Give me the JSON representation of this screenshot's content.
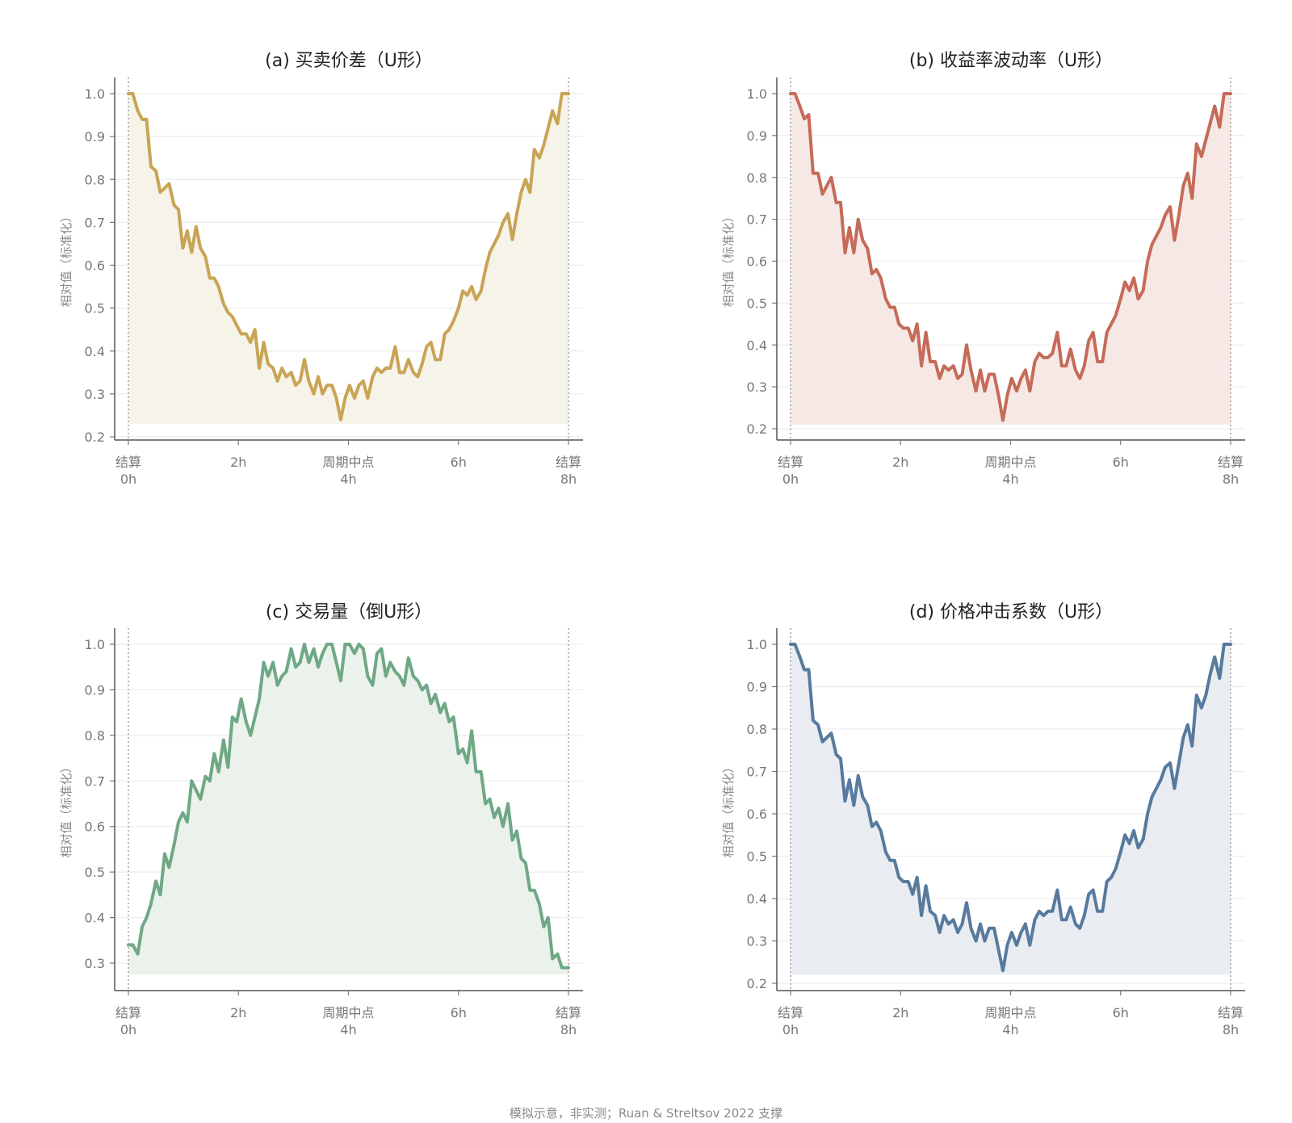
{
  "footer": "模拟示意，非实测；Ruan & Streltsov 2022 支撑",
  "chart_data": [
    {
      "type": "area",
      "title": "(a) 买卖价差（U形）",
      "ylabel": "相对值（标准化）",
      "xlabel": "",
      "color": "#c9a455",
      "fill": "#f6f3e9",
      "ylim": [
        0.2,
        1.0
      ],
      "yticks": [
        0.2,
        0.3,
        0.4,
        0.5,
        0.6,
        0.7,
        0.8,
        0.9,
        1.0
      ],
      "xlim": [
        0,
        8
      ],
      "xticks": [
        {
          "x": 0,
          "label": [
            "结算",
            "0h"
          ]
        },
        {
          "x": 2,
          "label": [
            "2h"
          ]
        },
        {
          "x": 4,
          "label": [
            "周期中点",
            "4h"
          ]
        },
        {
          "x": 6,
          "label": [
            "6h"
          ]
        },
        {
          "x": 8,
          "label": [
            "结算",
            "8h"
          ]
        }
      ],
      "vlines": [
        0,
        8
      ],
      "baseline": 0.23,
      "x": [
        0.0,
        0.08,
        0.17,
        0.25,
        0.33,
        0.41,
        0.5,
        0.58,
        0.66,
        0.74,
        0.83,
        0.91,
        0.99,
        1.07,
        1.15,
        1.23,
        1.31,
        1.4,
        1.48,
        1.56,
        1.64,
        1.73,
        1.81,
        1.89,
        1.97,
        2.05,
        2.14,
        2.22,
        2.3,
        2.38,
        2.46,
        2.54,
        2.63,
        2.71,
        2.79,
        2.87,
        2.96,
        3.04,
        3.12,
        3.2,
        3.28,
        3.37,
        3.45,
        3.53,
        3.61,
        3.7,
        3.78,
        3.86,
        3.94,
        4.02,
        4.11,
        4.19,
        4.27,
        4.35,
        4.44,
        4.52,
        4.6,
        4.68,
        4.76,
        4.85,
        4.93,
        5.01,
        5.09,
        5.18,
        5.26,
        5.34,
        5.42,
        5.5,
        5.58,
        5.67,
        5.75,
        5.83,
        5.91,
        6.0,
        6.08,
        6.16,
        6.24,
        6.32,
        6.41,
        6.49,
        6.57,
        6.65,
        6.73,
        6.81,
        6.9,
        6.98,
        7.06,
        7.14,
        7.22,
        7.3,
        7.38,
        7.47,
        7.55,
        7.63,
        7.71,
        7.8,
        7.88,
        7.96,
        8.0
      ],
      "y": [
        1.0,
        1.0,
        0.96,
        0.94,
        0.94,
        0.83,
        0.82,
        0.77,
        0.78,
        0.79,
        0.74,
        0.73,
        0.64,
        0.68,
        0.63,
        0.69,
        0.64,
        0.62,
        0.57,
        0.57,
        0.55,
        0.51,
        0.49,
        0.48,
        0.46,
        0.44,
        0.44,
        0.42,
        0.45,
        0.36,
        0.42,
        0.37,
        0.36,
        0.33,
        0.36,
        0.34,
        0.35,
        0.32,
        0.33,
        0.38,
        0.33,
        0.3,
        0.34,
        0.3,
        0.32,
        0.32,
        0.29,
        0.24,
        0.29,
        0.32,
        0.29,
        0.32,
        0.33,
        0.29,
        0.34,
        0.36,
        0.35,
        0.36,
        0.36,
        0.41,
        0.35,
        0.35,
        0.38,
        0.35,
        0.34,
        0.37,
        0.41,
        0.42,
        0.38,
        0.38,
        0.44,
        0.45,
        0.47,
        0.5,
        0.54,
        0.53,
        0.55,
        0.52,
        0.54,
        0.59,
        0.63,
        0.65,
        0.67,
        0.7,
        0.72,
        0.66,
        0.72,
        0.77,
        0.8,
        0.77,
        0.87,
        0.85,
        0.88,
        0.92,
        0.96,
        0.93,
        1.0,
        1.0,
        1.0
      ]
    },
    {
      "type": "area",
      "title": "(b) 收益率波动率（U形）",
      "ylabel": "相对值（标准化）",
      "xlabel": "",
      "color": "#c66b59",
      "fill": "#f6e9e5",
      "ylim": [
        0.2,
        1.0
      ],
      "yticks": [
        0.2,
        0.3,
        0.4,
        0.5,
        0.6,
        0.7,
        0.8,
        0.9,
        1.0
      ],
      "xlim": [
        0,
        8
      ],
      "xticks": [
        {
          "x": 0,
          "label": [
            "结算",
            "0h"
          ]
        },
        {
          "x": 2,
          "label": [
            "2h"
          ]
        },
        {
          "x": 4,
          "label": [
            "周期中点",
            "4h"
          ]
        },
        {
          "x": 6,
          "label": [
            "6h"
          ]
        },
        {
          "x": 8,
          "label": [
            "结算",
            "8h"
          ]
        }
      ],
      "vlines": [
        0,
        8
      ],
      "baseline": 0.21,
      "x": [
        0.0,
        0.08,
        0.17,
        0.25,
        0.33,
        0.41,
        0.5,
        0.58,
        0.66,
        0.74,
        0.83,
        0.91,
        0.99,
        1.07,
        1.15,
        1.23,
        1.31,
        1.4,
        1.48,
        1.56,
        1.64,
        1.73,
        1.81,
        1.89,
        1.97,
        2.05,
        2.14,
        2.22,
        2.3,
        2.38,
        2.46,
        2.54,
        2.63,
        2.71,
        2.79,
        2.87,
        2.96,
        3.04,
        3.12,
        3.2,
        3.28,
        3.37,
        3.45,
        3.53,
        3.61,
        3.7,
        3.78,
        3.86,
        3.94,
        4.02,
        4.11,
        4.19,
        4.27,
        4.35,
        4.44,
        4.52,
        4.6,
        4.68,
        4.76,
        4.85,
        4.93,
        5.01,
        5.09,
        5.18,
        5.26,
        5.34,
        5.42,
        5.5,
        5.58,
        5.67,
        5.75,
        5.83,
        5.91,
        6.0,
        6.08,
        6.16,
        6.24,
        6.32,
        6.41,
        6.49,
        6.57,
        6.65,
        6.73,
        6.81,
        6.9,
        6.98,
        7.06,
        7.14,
        7.22,
        7.3,
        7.38,
        7.47,
        7.55,
        7.63,
        7.71,
        7.8,
        7.88,
        7.96,
        8.0
      ],
      "y": [
        1.0,
        1.0,
        0.97,
        0.94,
        0.95,
        0.81,
        0.81,
        0.76,
        0.78,
        0.8,
        0.74,
        0.74,
        0.62,
        0.68,
        0.62,
        0.7,
        0.65,
        0.63,
        0.57,
        0.58,
        0.56,
        0.51,
        0.49,
        0.49,
        0.45,
        0.44,
        0.44,
        0.41,
        0.45,
        0.35,
        0.43,
        0.36,
        0.36,
        0.32,
        0.35,
        0.34,
        0.35,
        0.32,
        0.33,
        0.4,
        0.34,
        0.29,
        0.34,
        0.29,
        0.33,
        0.33,
        0.28,
        0.22,
        0.28,
        0.32,
        0.29,
        0.32,
        0.34,
        0.29,
        0.36,
        0.38,
        0.37,
        0.37,
        0.38,
        0.43,
        0.35,
        0.35,
        0.39,
        0.34,
        0.32,
        0.35,
        0.41,
        0.43,
        0.36,
        0.36,
        0.43,
        0.45,
        0.47,
        0.51,
        0.55,
        0.53,
        0.56,
        0.51,
        0.53,
        0.6,
        0.64,
        0.66,
        0.68,
        0.71,
        0.73,
        0.65,
        0.71,
        0.78,
        0.81,
        0.75,
        0.88,
        0.85,
        0.89,
        0.93,
        0.97,
        0.92,
        1.0,
        1.0,
        1.0
      ]
    },
    {
      "type": "area",
      "title": "(c) 交易量（倒U形）",
      "ylabel": "相对值（标准化）",
      "xlabel": "",
      "color": "#6fa885",
      "fill": "#ebf2ec",
      "ylim": [
        0.255,
        1.035
      ],
      "yticks": [
        0.3,
        0.4,
        0.5,
        0.6,
        0.7,
        0.8,
        0.9,
        1.0
      ],
      "xlim": [
        0,
        8
      ],
      "xticks": [
        {
          "x": 0,
          "label": [
            "结算",
            "0h"
          ]
        },
        {
          "x": 2,
          "label": [
            "2h"
          ]
        },
        {
          "x": 4,
          "label": [
            "周期中点",
            "4h"
          ]
        },
        {
          "x": 6,
          "label": [
            "6h"
          ]
        },
        {
          "x": 8,
          "label": [
            "结算",
            "8h"
          ]
        }
      ],
      "vlines": [
        0,
        8
      ],
      "baseline": 0.275,
      "x": [
        0.0,
        0.08,
        0.17,
        0.25,
        0.33,
        0.41,
        0.5,
        0.58,
        0.66,
        0.74,
        0.83,
        0.91,
        0.99,
        1.07,
        1.15,
        1.23,
        1.31,
        1.4,
        1.48,
        1.56,
        1.64,
        1.73,
        1.81,
        1.89,
        1.97,
        2.05,
        2.14,
        2.22,
        2.3,
        2.38,
        2.46,
        2.54,
        2.63,
        2.71,
        2.79,
        2.87,
        2.96,
        3.04,
        3.12,
        3.2,
        3.28,
        3.37,
        3.45,
        3.53,
        3.61,
        3.7,
        3.78,
        3.86,
        3.94,
        4.02,
        4.11,
        4.19,
        4.27,
        4.35,
        4.44,
        4.52,
        4.6,
        4.68,
        4.76,
        4.85,
        4.93,
        5.01,
        5.09,
        5.18,
        5.26,
        5.34,
        5.42,
        5.5,
        5.58,
        5.67,
        5.75,
        5.83,
        5.91,
        6.0,
        6.08,
        6.16,
        6.24,
        6.32,
        6.41,
        6.49,
        6.57,
        6.65,
        6.73,
        6.81,
        6.9,
        6.98,
        7.06,
        7.14,
        7.22,
        7.3,
        7.38,
        7.47,
        7.55,
        7.63,
        7.71,
        7.8,
        7.88,
        7.96,
        8.0
      ],
      "y": [
        0.34,
        0.34,
        0.32,
        0.38,
        0.4,
        0.43,
        0.48,
        0.45,
        0.54,
        0.51,
        0.56,
        0.61,
        0.63,
        0.61,
        0.7,
        0.68,
        0.66,
        0.71,
        0.7,
        0.76,
        0.72,
        0.79,
        0.73,
        0.84,
        0.83,
        0.88,
        0.83,
        0.8,
        0.84,
        0.88,
        0.96,
        0.93,
        0.96,
        0.91,
        0.93,
        0.94,
        0.99,
        0.95,
        0.96,
        1.0,
        0.96,
        0.99,
        0.95,
        0.98,
        1.0,
        1.0,
        0.96,
        0.92,
        1.0,
        1.0,
        0.98,
        1.0,
        0.99,
        0.93,
        0.91,
        0.98,
        0.99,
        0.93,
        0.96,
        0.94,
        0.93,
        0.91,
        0.97,
        0.93,
        0.92,
        0.9,
        0.91,
        0.87,
        0.89,
        0.85,
        0.87,
        0.83,
        0.84,
        0.76,
        0.77,
        0.74,
        0.81,
        0.72,
        0.72,
        0.65,
        0.66,
        0.62,
        0.64,
        0.6,
        0.65,
        0.57,
        0.59,
        0.53,
        0.52,
        0.46,
        0.46,
        0.43,
        0.38,
        0.4,
        0.31,
        0.32,
        0.29,
        0.29,
        0.29
      ]
    },
    {
      "type": "area",
      "title": "(d) 价格冲击系数（U形）",
      "ylabel": "相对值（标准化）",
      "xlabel": "",
      "color": "#577a9e",
      "fill": "#e9edf2",
      "ylim": [
        0.2,
        1.0
      ],
      "yticks": [
        0.2,
        0.3,
        0.4,
        0.5,
        0.6,
        0.7,
        0.8,
        0.9,
        1.0
      ],
      "xlim": [
        0,
        8
      ],
      "xticks": [
        {
          "x": 0,
          "label": [
            "结算",
            "0h"
          ]
        },
        {
          "x": 2,
          "label": [
            "2h"
          ]
        },
        {
          "x": 4,
          "label": [
            "周期中点",
            "4h"
          ]
        },
        {
          "x": 6,
          "label": [
            "6h"
          ]
        },
        {
          "x": 8,
          "label": [
            "结算",
            "8h"
          ]
        }
      ],
      "vlines": [
        0,
        8
      ],
      "baseline": 0.22,
      "x": [
        0.0,
        0.08,
        0.17,
        0.25,
        0.33,
        0.41,
        0.5,
        0.58,
        0.66,
        0.74,
        0.83,
        0.91,
        0.99,
        1.07,
        1.15,
        1.23,
        1.31,
        1.4,
        1.48,
        1.56,
        1.64,
        1.73,
        1.81,
        1.89,
        1.97,
        2.05,
        2.14,
        2.22,
        2.3,
        2.38,
        2.46,
        2.54,
        2.63,
        2.71,
        2.79,
        2.87,
        2.96,
        3.04,
        3.12,
        3.2,
        3.28,
        3.37,
        3.45,
        3.53,
        3.61,
        3.7,
        3.78,
        3.86,
        3.94,
        4.02,
        4.11,
        4.19,
        4.27,
        4.35,
        4.44,
        4.52,
        4.6,
        4.68,
        4.76,
        4.85,
        4.93,
        5.01,
        5.09,
        5.18,
        5.26,
        5.34,
        5.42,
        5.5,
        5.58,
        5.67,
        5.75,
        5.83,
        5.91,
        6.0,
        6.08,
        6.16,
        6.24,
        6.32,
        6.41,
        6.49,
        6.57,
        6.65,
        6.73,
        6.81,
        6.9,
        6.98,
        7.06,
        7.14,
        7.22,
        7.3,
        7.38,
        7.47,
        7.55,
        7.63,
        7.71,
        7.8,
        7.88,
        7.96,
        8.0
      ],
      "y": [
        1.0,
        1.0,
        0.97,
        0.94,
        0.94,
        0.82,
        0.81,
        0.77,
        0.78,
        0.79,
        0.74,
        0.73,
        0.63,
        0.68,
        0.62,
        0.69,
        0.64,
        0.62,
        0.57,
        0.58,
        0.56,
        0.51,
        0.49,
        0.49,
        0.45,
        0.44,
        0.44,
        0.41,
        0.45,
        0.36,
        0.43,
        0.37,
        0.36,
        0.32,
        0.36,
        0.34,
        0.35,
        0.32,
        0.34,
        0.39,
        0.33,
        0.3,
        0.34,
        0.3,
        0.33,
        0.33,
        0.28,
        0.23,
        0.29,
        0.32,
        0.29,
        0.32,
        0.34,
        0.29,
        0.35,
        0.37,
        0.36,
        0.37,
        0.37,
        0.42,
        0.35,
        0.35,
        0.38,
        0.34,
        0.33,
        0.36,
        0.41,
        0.42,
        0.37,
        0.37,
        0.44,
        0.45,
        0.47,
        0.51,
        0.55,
        0.53,
        0.56,
        0.52,
        0.54,
        0.6,
        0.64,
        0.66,
        0.68,
        0.71,
        0.72,
        0.66,
        0.72,
        0.78,
        0.81,
        0.76,
        0.88,
        0.85,
        0.88,
        0.93,
        0.97,
        0.92,
        1.0,
        1.0,
        1.0
      ]
    }
  ]
}
